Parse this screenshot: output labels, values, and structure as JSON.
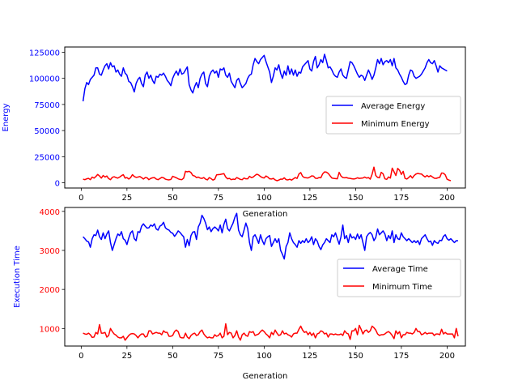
{
  "chart_data": [
    {
      "type": "line",
      "title": "",
      "xlabel": "Generation",
      "ylabel": "Energy",
      "xlim": [
        -9,
        210
      ],
      "ylim": [
        -5000,
        130000
      ],
      "x_ticks": [
        0,
        25,
        50,
        75,
        100,
        125,
        150,
        175,
        200
      ],
      "y_ticks": [
        0,
        25000,
        50000,
        75000,
        100000,
        125000
      ],
      "tick_color_y": "#0000ff",
      "ylabel_color": "#0000ff",
      "legend": {
        "position": "center-right"
      },
      "series": [
        {
          "name": "Average Energy",
          "color": "#0000ff",
          "x_start": 1,
          "x_step": 1,
          "values": [
            78000,
            90000,
            96000,
            94000,
            99000,
            101000,
            103000,
            110000,
            110000,
            104000,
            103000,
            108000,
            112000,
            114000,
            109000,
            115000,
            111000,
            112000,
            106000,
            108000,
            104000,
            102000,
            110000,
            105000,
            103000,
            97000,
            96000,
            92000,
            87000,
            95000,
            99000,
            101000,
            95000,
            92000,
            103000,
            106000,
            100000,
            103000,
            98000,
            95000,
            102000,
            101000,
            104000,
            103000,
            105000,
            102000,
            98000,
            96000,
            93000,
            100000,
            104000,
            107000,
            103000,
            109000,
            104000,
            105000,
            108000,
            111000,
            94000,
            89000,
            86000,
            92000,
            96000,
            91000,
            100000,
            104000,
            106000,
            95000,
            92000,
            102000,
            106000,
            108000,
            105000,
            107000,
            101000,
            109000,
            108000,
            110000,
            103000,
            101000,
            105000,
            97000,
            94000,
            91000,
            98000,
            100000,
            95000,
            91000,
            93000,
            95000,
            100000,
            103000,
            104000,
            113000,
            119000,
            116000,
            114000,
            118000,
            120000,
            122000,
            116000,
            111000,
            106000,
            96000,
            102000,
            110000,
            108000,
            113000,
            105000,
            100000,
            107000,
            103000,
            112000,
            104000,
            109000,
            103000,
            108000,
            102000,
            106000,
            105000,
            111000,
            113000,
            115000,
            117000,
            109000,
            107000,
            116000,
            121000,
            110000,
            113000,
            118000,
            115000,
            123000,
            117000,
            110000,
            111000,
            108000,
            104000,
            102000,
            101000,
            106000,
            109000,
            103000,
            101000,
            100000,
            108000,
            116000,
            115000,
            112000,
            108000,
            104000,
            101000,
            103000,
            102000,
            98000,
            103000,
            108000,
            104000,
            99000,
            103000,
            110000,
            118000,
            114000,
            119000,
            113000,
            116000,
            117000,
            115000,
            118000,
            112000,
            119000,
            110000,
            108000,
            104000,
            101000,
            97000,
            94000,
            95000,
            103000,
            108000,
            107000,
            102000,
            100000,
            101000,
            102000,
            104000,
            107000,
            110000,
            115000,
            118000,
            115000,
            114000,
            117000,
            112000,
            106000,
            112000,
            110000,
            109000,
            108000,
            107000
          ]
        },
        {
          "name": "Minimum Energy",
          "color": "#ff0000",
          "x_start": 1,
          "x_step": 1,
          "values": [
            3500,
            3000,
            3800,
            4200,
            3000,
            5500,
            4500,
            6000,
            8000,
            6500,
            4500,
            7000,
            5500,
            6500,
            4000,
            3000,
            5200,
            5800,
            5000,
            4500,
            5500,
            6800,
            7800,
            4500,
            5000,
            3600,
            5000,
            7800,
            6000,
            5200,
            5500,
            6000,
            5000,
            3600,
            5000,
            4800,
            3000,
            4200,
            4800,
            5000,
            3600,
            3000,
            4000,
            5200,
            4800,
            3500,
            3000,
            2800,
            3200,
            6200,
            5500,
            4800,
            3800,
            3200,
            3000,
            4500,
            11000,
            10500,
            11000,
            9800,
            7000,
            6500,
            5000,
            5500,
            4500,
            4200,
            5000,
            3500,
            2800,
            5000,
            4000,
            2600,
            3500,
            7600,
            7800,
            8000,
            8400,
            8800,
            5500,
            3800,
            4200,
            3000,
            3500,
            3200,
            5000,
            4200,
            3200,
            3000,
            4600,
            3800,
            3800,
            6200,
            5000,
            5500,
            7000,
            8200,
            7500,
            6000,
            5000,
            4600,
            6500,
            5500,
            3800,
            3600,
            4200,
            2800,
            2000,
            2600,
            3500,
            3400,
            4800,
            3000,
            2800,
            3400,
            2600,
            3800,
            5000,
            4200,
            8400,
            9800,
            6200,
            5000,
            4800,
            4600,
            5500,
            6600,
            6400,
            4400,
            4200,
            5000,
            4800,
            8600,
            10400,
            10200,
            9000,
            6800,
            4600,
            4200,
            4000,
            3800,
            10000,
            6500,
            5000,
            4800,
            5000,
            4400,
            4200,
            3800,
            3600,
            4000,
            4800,
            4200,
            4400,
            4600,
            5500,
            4500,
            5000,
            3500,
            8200,
            15000,
            7000,
            5200,
            4800,
            10000,
            8600,
            3800,
            3300,
            5600,
            4500,
            14000,
            10500,
            7000,
            13800,
            12000,
            8000,
            11000,
            4300,
            3600,
            5000,
            6800,
            4600,
            7000,
            8400,
            9000,
            8600,
            8400,
            6800,
            5600,
            7000,
            5800,
            6800,
            5600,
            4400,
            4200,
            4800,
            5200,
            9400,
            9200,
            7600,
            3400,
            2600,
            2000
          ]
        }
      ]
    },
    {
      "type": "line",
      "title": "",
      "xlabel": "Generation",
      "ylabel": "Execution Time",
      "xlim": [
        -9,
        210
      ],
      "ylim": [
        550,
        4100
      ],
      "x_ticks": [
        0,
        25,
        50,
        75,
        100,
        125,
        150,
        175,
        200
      ],
      "y_ticks": [
        1000,
        2000,
        3000,
        4000
      ],
      "tick_color_y": "#ff0000",
      "ylabel_color": "#0000ff",
      "legend": {
        "position": "center-right"
      },
      "series": [
        {
          "name": "Average Time",
          "color": "#0000ff",
          "x_start": 1,
          "x_step": 1,
          "values": [
            3350,
            3300,
            3240,
            3220,
            3080,
            3300,
            3400,
            3380,
            3520,
            3350,
            3280,
            3450,
            3300,
            3420,
            3500,
            3200,
            3000,
            3150,
            3300,
            3420,
            3380,
            3480,
            3300,
            3260,
            3150,
            3320,
            3450,
            3500,
            3300,
            3250,
            3480,
            3460,
            3620,
            3680,
            3620,
            3570,
            3580,
            3650,
            3620,
            3680,
            3550,
            3520,
            3620,
            3650,
            3720,
            3580,
            3540,
            3520,
            3460,
            3440,
            3360,
            3420,
            3500,
            3460,
            3400,
            3350,
            3080,
            3280,
            3120,
            3380,
            3470,
            3480,
            3280,
            3600,
            3700,
            3900,
            3820,
            3700,
            3530,
            3600,
            3480,
            3560,
            3600,
            3560,
            3500,
            3650,
            3450,
            3670,
            3800,
            3560,
            3500,
            3600,
            3700,
            3850,
            3950,
            3520,
            3400,
            3350,
            3520,
            3700,
            3560,
            3200,
            3000,
            3350,
            3400,
            3300,
            3180,
            3400,
            3250,
            3150,
            3300,
            3350,
            3380,
            3100,
            3200,
            3300,
            3200,
            3300,
            3000,
            2900,
            2780,
            3100,
            3200,
            3450,
            3300,
            3200,
            3150,
            3080,
            3250,
            3180,
            3250,
            3200,
            3300,
            3200,
            3250,
            3350,
            3150,
            3300,
            3240,
            3100,
            3020,
            3140,
            3200,
            3300,
            3250,
            3200,
            3400,
            3350,
            3450,
            3300,
            3160,
            3350,
            3650,
            3300,
            3380,
            3200,
            3420,
            3320,
            3350,
            3280,
            3420,
            3300,
            3400,
            3200,
            3000,
            3350,
            3420,
            3460,
            3400,
            3250,
            3330,
            3550,
            3400,
            3450,
            3500,
            3420,
            3250,
            3380,
            3300,
            3500,
            3200,
            3400,
            3300,
            3280,
            3450,
            3350,
            3300,
            3250,
            3300,
            3250,
            3200,
            3250,
            3200,
            3250,
            3150,
            3300,
            3350,
            3400,
            3300,
            3220,
            3240,
            3130,
            3250,
            3200,
            3180,
            3260,
            3250,
            3360,
            3400,
            3300,
            3260,
            3300,
            3250,
            3200,
            3250,
            3250
          ]
        },
        {
          "name": "Minimum Time",
          "color": "#ff0000",
          "x_start": 1,
          "x_step": 1,
          "values": [
            880,
            860,
            850,
            880,
            840,
            770,
            780,
            900,
            860,
            1100,
            880,
            880,
            900,
            780,
            820,
            1000,
            920,
            860,
            830,
            780,
            760,
            760,
            800,
            700,
            760,
            820,
            860,
            870,
            860,
            820,
            760,
            820,
            860,
            860,
            780,
            800,
            940,
            940,
            860,
            880,
            900,
            880,
            880,
            840,
            940,
            900,
            900,
            800,
            800,
            820,
            920,
            960,
            920,
            780,
            760,
            760,
            880,
            780,
            740,
            820,
            860,
            880,
            820,
            840,
            920,
            960,
            860,
            800,
            760,
            780,
            760,
            760,
            840,
            800,
            820,
            880,
            760,
            800,
            1120,
            840,
            900,
            880,
            760,
            820,
            940,
            780,
            700,
            840,
            880,
            820,
            800,
            920,
            900,
            920,
            820,
            840,
            860,
            920,
            960,
            920,
            860,
            820,
            760,
            900,
            840,
            960,
            880,
            820,
            840,
            940,
            860,
            880,
            840,
            820,
            780,
            860,
            880,
            880,
            980,
            1060,
            960,
            900,
            920,
            840,
            900,
            820,
            880,
            760,
            860,
            880,
            940,
            920,
            860,
            880,
            780,
            860,
            860,
            840,
            860,
            840,
            840,
            860,
            820,
            940,
            880,
            860,
            720,
            940,
            940,
            1000,
            840,
            1080,
            980,
            860,
            940,
            960,
            900,
            940,
            1060,
            1020,
            960,
            860,
            820,
            840,
            840,
            860,
            900,
            920,
            880,
            820,
            740,
            940,
            860,
            920,
            760,
            840,
            840,
            900,
            880,
            880,
            860,
            900,
            1000,
            920,
            920,
            840,
            860,
            900,
            860,
            880,
            880,
            880,
            820,
            860,
            860,
            840,
            980,
            860,
            900,
            860,
            860,
            860,
            860,
            760,
            1000,
            800
          ]
        }
      ]
    }
  ]
}
